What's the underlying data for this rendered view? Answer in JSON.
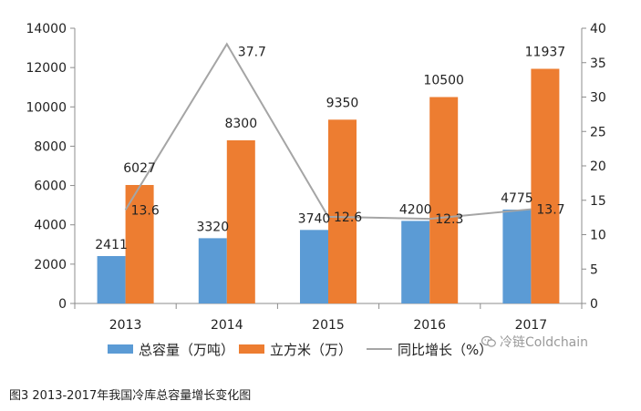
{
  "chart_data": {
    "type": "bar",
    "categories": [
      "2013",
      "2014",
      "2015",
      "2016",
      "2017"
    ],
    "series": [
      {
        "name": "总容量（万吨）",
        "type": "bar",
        "axis": "left",
        "color": "#5B9BD5",
        "values": [
          2411,
          3320,
          3740,
          4200,
          4775
        ]
      },
      {
        "name": "立方米（万）",
        "type": "bar",
        "axis": "left",
        "color": "#ED7D31",
        "values": [
          6027,
          8300,
          9350,
          10500,
          11937
        ]
      },
      {
        "name": "同比增长（%）",
        "type": "line",
        "axis": "right",
        "color": "#A5A5A5",
        "values": [
          13.6,
          37.7,
          12.6,
          12.3,
          13.7
        ]
      }
    ],
    "y_left": {
      "min": 0,
      "max": 14000,
      "ticks": [
        0,
        2000,
        4000,
        6000,
        8000,
        10000,
        12000,
        14000
      ]
    },
    "y_right": {
      "min": 0,
      "max": 40,
      "ticks": [
        0,
        5,
        10,
        15,
        20,
        25,
        30,
        35,
        40
      ]
    },
    "grid": false,
    "legend_position": "bottom"
  },
  "caption": "图3  2013-2017年我国冷库总容量增长变化图",
  "watermark": "冷链Coldchain"
}
